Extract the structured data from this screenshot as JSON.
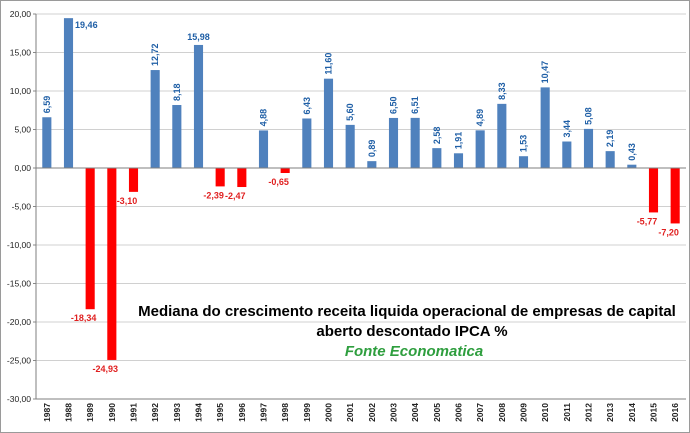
{
  "chart_data": {
    "type": "bar",
    "title_lines": [
      "Mediana do crescimento receita liquida operacional  de empresas de capital",
      "aberto descontado IPCA %"
    ],
    "source": "Fonte Economatica",
    "xlabel": "",
    "ylabel": "",
    "ylim": [
      -30,
      20
    ],
    "ytick_step": 5,
    "ytick_labels": [
      "20,00",
      "15,00",
      "10,00",
      "5,00",
      "0,00",
      "-5,00",
      "-10,00",
      "-15,00",
      "-20,00",
      "-25,00",
      "-30,00"
    ],
    "grid": true,
    "legend": "none",
    "categories": [
      "1987",
      "1988",
      "1989",
      "1990",
      "1991",
      "1992",
      "1993",
      "1994",
      "1995",
      "1996",
      "1997",
      "1998",
      "1999",
      "2000",
      "2001",
      "2002",
      "2003",
      "2004",
      "2005",
      "2006",
      "2007",
      "2008",
      "2009",
      "2010",
      "2011",
      "2012",
      "2013",
      "2014",
      "2015",
      "2016"
    ],
    "values": [
      6.59,
      19.46,
      -18.34,
      -24.93,
      -3.1,
      12.72,
      8.18,
      15.98,
      -2.39,
      -2.47,
      4.88,
      -0.65,
      6.43,
      11.6,
      5.6,
      0.89,
      6.5,
      6.51,
      2.58,
      1.91,
      4.89,
      8.33,
      1.53,
      10.47,
      3.44,
      5.08,
      2.19,
      0.43,
      -5.77,
      -7.2
    ],
    "value_labels": [
      "6,59",
      "19,46",
      "-18,34",
      "-24,93",
      "-3,10",
      "12,72",
      "8,18",
      "15,98",
      "-2,39",
      "-2,47",
      "4,88",
      "-0,65",
      "6,43",
      "11,60",
      "5,60",
      "0,89",
      "6,50",
      "6,51",
      "2,58",
      "1,91",
      "4,89",
      "8,33",
      "1,53",
      "10,47",
      "3,44",
      "5,08",
      "2,19",
      "0,43",
      "-5,77",
      "-7,20"
    ],
    "colors": {
      "positive": "#4f81bd",
      "negative": "#ff0000",
      "positive_label": "#1f5fa6",
      "negative_label": "#e02020",
      "source": "#2e9e3e",
      "grid": "#d0d0d0"
    }
  }
}
